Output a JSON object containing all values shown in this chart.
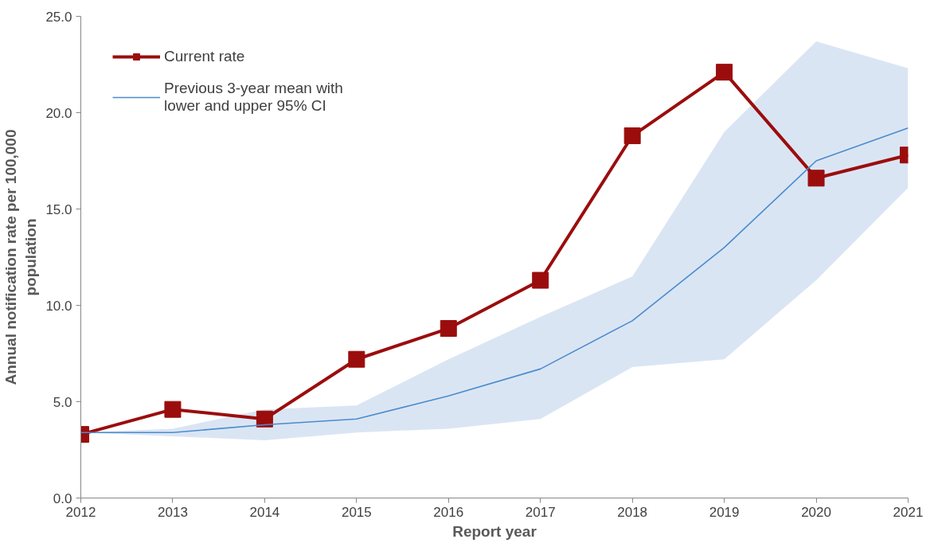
{
  "chart_data": {
    "type": "line",
    "xlabel": "Report year",
    "ylabel": "Annual notification rate per 100,000\npopulation",
    "x": [
      2012,
      2013,
      2014,
      2015,
      2016,
      2017,
      2018,
      2019,
      2020,
      2021
    ],
    "xlim": [
      2012,
      2021
    ],
    "xticks": [
      2012,
      2013,
      2014,
      2015,
      2016,
      2017,
      2018,
      2019,
      2020,
      2021
    ],
    "ylim": [
      0,
      25
    ],
    "yticks": [
      {
        "value": 0,
        "label": "0.0"
      },
      {
        "value": 5,
        "label": "5.0"
      },
      {
        "value": 10,
        "label": "10.0"
      },
      {
        "value": 15,
        "label": "15.0"
      },
      {
        "value": 20,
        "label": "20.0"
      },
      {
        "value": 25,
        "label": "25.0"
      }
    ],
    "grid": false,
    "legend": "top left",
    "series": [
      {
        "name": "Current rate",
        "color": "#9b0d0d",
        "marker": "square",
        "line_style": "solid",
        "values": [
          3.3,
          4.6,
          4.1,
          7.2,
          8.8,
          11.3,
          18.8,
          22.1,
          16.6,
          17.8
        ]
      },
      {
        "name": "Previous 3-year mean with\nlower and upper 95% CI",
        "color": "#4a8ccc",
        "marker": "none",
        "line_style": "solid",
        "values": [
          3.4,
          3.4,
          3.8,
          4.1,
          5.3,
          6.7,
          9.2,
          13.0,
          17.5,
          19.2
        ],
        "lower": [
          3.4,
          3.2,
          3.0,
          3.4,
          3.6,
          4.1,
          6.8,
          7.2,
          11.3,
          16.1
        ],
        "upper": [
          3.4,
          3.6,
          4.6,
          4.8,
          7.2,
          9.4,
          11.5,
          19.0,
          23.7,
          22.3
        ]
      }
    ]
  }
}
